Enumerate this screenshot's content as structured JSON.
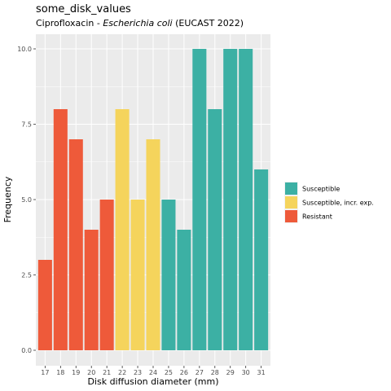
{
  "chart_data": {
    "type": "bar",
    "title": "some_disk_values",
    "subtitle_prefix": "Ciprofloxacin - ",
    "subtitle_italic": "Escherichia coli",
    "subtitle_suffix": " (EUCAST 2022)",
    "xlabel": "Disk diffusion diameter (mm)",
    "ylabel": "Frequency",
    "ylim": [
      0,
      10.5
    ],
    "yticks": [
      0,
      2.5,
      5,
      7.5,
      10
    ],
    "ytick_labels": [
      "0.0",
      "2.5",
      "5.0",
      "7.5",
      "10.0"
    ],
    "categories": [
      "17",
      "18",
      "19",
      "20",
      "21",
      "22",
      "23",
      "24",
      "25",
      "26",
      "27",
      "28",
      "29",
      "30",
      "31"
    ],
    "values": [
      3,
      8,
      7,
      4,
      5,
      8,
      5,
      7,
      5,
      4,
      10,
      8,
      10,
      10,
      6
    ],
    "bar_class": [
      "R",
      "R",
      "R",
      "R",
      "R",
      "I",
      "I",
      "I",
      "S",
      "S",
      "S",
      "S",
      "S",
      "S",
      "S"
    ],
    "grid": true,
    "legend_position": "right",
    "legend": [
      {
        "key": "S",
        "label": "Susceptible",
        "color": "#3CB0A4"
      },
      {
        "key": "I",
        "label": "Susceptible, incr. exp.",
        "color": "#F5D45C"
      },
      {
        "key": "R",
        "label": "Resistant",
        "color": "#EE5A3A"
      }
    ],
    "panel_color": "#EBEBEB",
    "grid_color": "#FFFFFF"
  }
}
